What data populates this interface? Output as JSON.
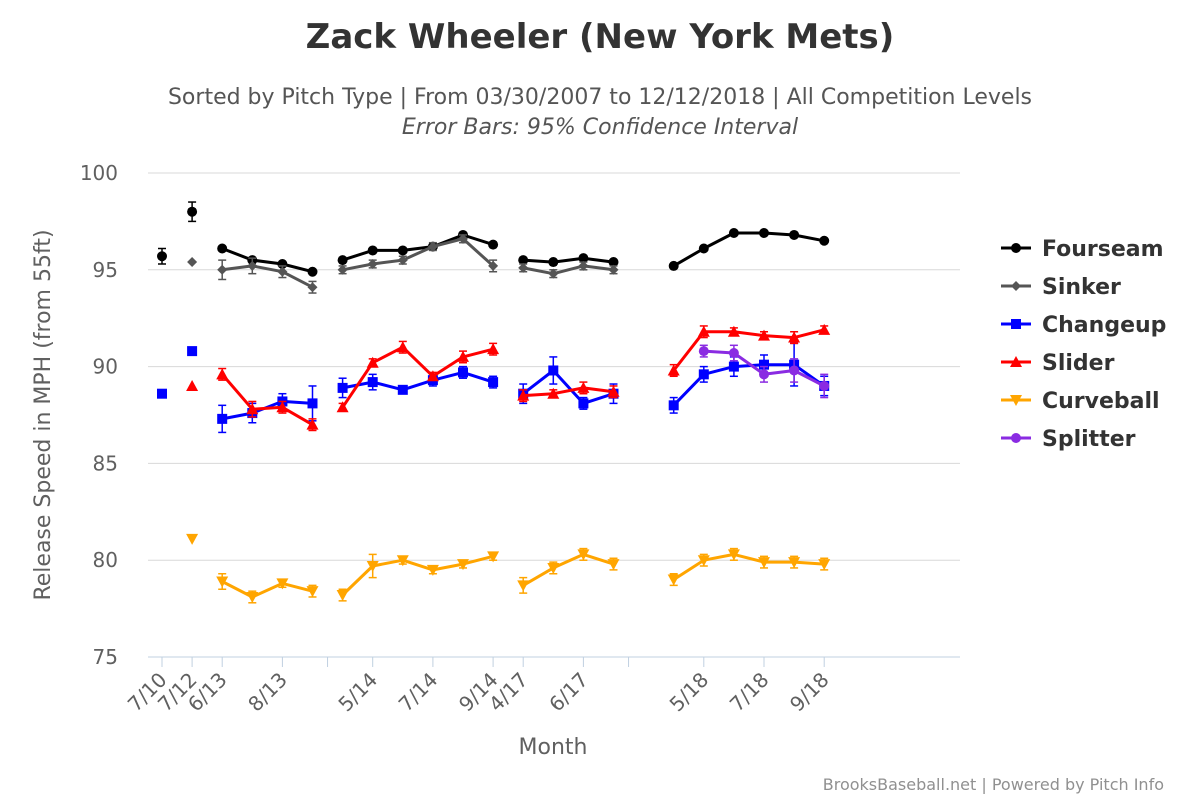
{
  "chart_data": {
    "type": "line",
    "title": "Zack Wheeler (New York Mets)",
    "subtitle": "Sorted by Pitch Type | From 03/30/2007 to 12/12/2018 | All Competition Levels",
    "subtitle2": "Error Bars: 95% Confidence Interval",
    "xlabel": "Month",
    "ylabel": "Release Speed in MPH (from 55ft)",
    "ylim": [
      75,
      100
    ],
    "yticks": [
      75,
      80,
      85,
      90,
      95,
      100
    ],
    "grid": true,
    "legend_position": "right",
    "credits": "BrooksBaseball.net | Powered by Pitch Info",
    "x_labels": [
      {
        "index": 0,
        "label": "7/10"
      },
      {
        "index": 1,
        "label": "7/12"
      },
      {
        "index": 2,
        "label": "6/13"
      },
      {
        "index": 4,
        "label": "8/13"
      },
      {
        "index": 7,
        "label": "5/14"
      },
      {
        "index": 9,
        "label": "7/14"
      },
      {
        "index": 11,
        "label": "9/14"
      },
      {
        "index": 12,
        "label": "4/17"
      },
      {
        "index": 14,
        "label": "6/17"
      },
      {
        "index": 18,
        "label": "5/18"
      },
      {
        "index": 20,
        "label": "7/18"
      },
      {
        "index": 22,
        "label": "9/18"
      }
    ],
    "x_tick_indices": [
      0,
      1,
      2,
      4,
      5.5,
      7,
      9,
      11,
      12,
      14,
      15.5,
      18,
      20,
      22
    ],
    "segments": [
      [
        0
      ],
      [
        1
      ],
      [
        2,
        3,
        4,
        5
      ],
      [
        6,
        7,
        8,
        9,
        10,
        11
      ],
      [
        12,
        13,
        14,
        15
      ],
      [
        17,
        18,
        19,
        20,
        21,
        22
      ]
    ],
    "series": [
      {
        "name": "Fourseam",
        "color": "#000000",
        "marker": "circle",
        "points": [
          [
            0,
            95.7,
            0.4
          ],
          [
            1,
            98.0,
            0.5
          ],
          [
            2,
            96.1,
            null
          ],
          [
            3,
            95.5,
            null
          ],
          [
            4,
            95.3,
            null
          ],
          [
            5,
            94.9,
            null
          ],
          [
            6,
            95.5,
            null
          ],
          [
            7,
            96.0,
            null
          ],
          [
            8,
            96.0,
            null
          ],
          [
            9,
            96.2,
            null
          ],
          [
            10,
            96.8,
            null
          ],
          [
            11,
            96.3,
            null
          ],
          [
            12,
            95.5,
            null
          ],
          [
            13,
            95.4,
            null
          ],
          [
            14,
            95.6,
            null
          ],
          [
            15,
            95.4,
            null
          ],
          [
            17,
            95.2,
            null
          ],
          [
            18,
            96.1,
            null
          ],
          [
            19,
            96.9,
            null
          ],
          [
            20,
            96.9,
            null
          ],
          [
            21,
            96.8,
            null
          ],
          [
            22,
            96.5,
            null
          ]
        ]
      },
      {
        "name": "Sinker",
        "color": "#555555",
        "marker": "diamond",
        "points": [
          [
            1,
            95.4,
            null
          ],
          [
            2,
            95.0,
            0.5
          ],
          [
            3,
            95.2,
            0.4
          ],
          [
            4,
            94.9,
            0.3
          ],
          [
            5,
            94.1,
            0.3
          ],
          [
            6,
            95.0,
            0.2
          ],
          [
            7,
            95.3,
            0.2
          ],
          [
            8,
            95.5,
            0.2
          ],
          [
            9,
            96.2,
            0.2
          ],
          [
            10,
            96.6,
            0.2
          ],
          [
            11,
            95.2,
            0.3
          ],
          [
            12,
            95.1,
            0.2
          ],
          [
            13,
            94.8,
            0.2
          ],
          [
            14,
            95.2,
            0.2
          ],
          [
            15,
            95.0,
            0.2
          ]
        ]
      },
      {
        "name": "Changeup",
        "color": "#0000ff",
        "marker": "square",
        "points": [
          [
            0,
            88.6,
            null
          ],
          [
            1,
            90.8,
            null
          ],
          [
            2,
            87.3,
            0.7
          ],
          [
            3,
            87.6,
            0.5
          ],
          [
            4,
            88.2,
            0.4
          ],
          [
            5,
            88.1,
            0.9
          ],
          [
            6,
            88.9,
            0.5
          ],
          [
            7,
            89.2,
            0.4
          ],
          [
            8,
            88.8,
            0.2
          ],
          [
            9,
            89.3,
            0.3
          ],
          [
            10,
            89.7,
            0.3
          ],
          [
            11,
            89.2,
            0.3
          ],
          [
            12,
            88.6,
            0.5
          ],
          [
            13,
            89.8,
            0.7
          ],
          [
            14,
            88.1,
            0.3
          ],
          [
            15,
            88.6,
            0.5
          ],
          [
            17,
            88.0,
            0.4
          ],
          [
            18,
            89.6,
            0.4
          ],
          [
            19,
            90.0,
            0.5
          ],
          [
            20,
            90.1,
            0.5
          ],
          [
            21,
            90.1,
            1.1
          ],
          [
            22,
            89.0,
            0.5
          ]
        ]
      },
      {
        "name": "Slider",
        "color": "#ff0000",
        "marker": "triangle",
        "points": [
          [
            1,
            89.0,
            null
          ],
          [
            2,
            89.6,
            0.3
          ],
          [
            3,
            87.8,
            0.4
          ],
          [
            4,
            87.9,
            0.3
          ],
          [
            5,
            87.0,
            0.3
          ],
          [
            6,
            87.9,
            0.2
          ],
          [
            7,
            90.2,
            0.2
          ],
          [
            8,
            91.0,
            0.3
          ],
          [
            9,
            89.5,
            0.2
          ],
          [
            10,
            90.5,
            0.3
          ],
          [
            11,
            90.9,
            0.3
          ],
          [
            12,
            88.5,
            0.3
          ],
          [
            13,
            88.6,
            0.2
          ],
          [
            14,
            88.9,
            0.3
          ],
          [
            15,
            88.7,
            0.3
          ],
          [
            17,
            89.8,
            0.3
          ],
          [
            18,
            91.8,
            0.3
          ],
          [
            19,
            91.8,
            0.2
          ],
          [
            20,
            91.6,
            0.2
          ],
          [
            21,
            91.5,
            0.3
          ],
          [
            22,
            91.9,
            0.2
          ]
        ]
      },
      {
        "name": "Curveball",
        "color": "#ffa500",
        "marker": "triangle-down",
        "points": [
          [
            1,
            81.1,
            null
          ],
          [
            2,
            78.9,
            0.4
          ],
          [
            3,
            78.1,
            0.3
          ],
          [
            4,
            78.8,
            0.2
          ],
          [
            5,
            78.4,
            0.3
          ],
          [
            6,
            78.2,
            0.3
          ],
          [
            7,
            79.7,
            0.6
          ],
          [
            8,
            80.0,
            0.2
          ],
          [
            9,
            79.5,
            0.2
          ],
          [
            10,
            79.8,
            0.2
          ],
          [
            11,
            80.2,
            0.2
          ],
          [
            12,
            78.7,
            0.4
          ],
          [
            13,
            79.6,
            0.3
          ],
          [
            14,
            80.3,
            0.3
          ],
          [
            15,
            79.8,
            0.3
          ],
          [
            17,
            79.0,
            0.3
          ],
          [
            18,
            80.0,
            0.3
          ],
          [
            19,
            80.3,
            0.3
          ],
          [
            20,
            79.9,
            0.3
          ],
          [
            21,
            79.9,
            0.3
          ],
          [
            22,
            79.8,
            0.3
          ]
        ]
      },
      {
        "name": "Splitter",
        "color": "#8a2be2",
        "marker": "circle",
        "points": [
          [
            18,
            90.8,
            0.3
          ],
          [
            19,
            90.7,
            0.4
          ],
          [
            20,
            89.6,
            0.4
          ],
          [
            21,
            89.8,
            0.6
          ],
          [
            22,
            89.0,
            0.6
          ]
        ]
      }
    ]
  }
}
